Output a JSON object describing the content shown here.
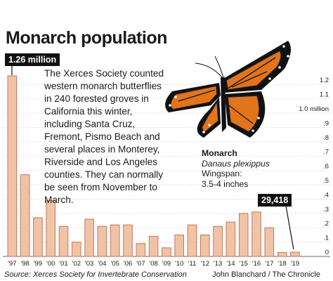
{
  "title": "Monarch population",
  "description": "The Xerces Society counted western monarch butterflies in 240 forested groves in California this winter, including Santa Cruz, Fremont, Pismo Beach and several places in Monterey, Riverside and Los Angeles counties. They can normally be seen from November to March.",
  "species": {
    "common_name": "Monarch",
    "scientific_name": "Danaus plexippus",
    "wingspan_label": "Wingspan:",
    "wingspan_value": "3.5-4 inches"
  },
  "callouts": {
    "peak": "1.26 million",
    "latest": "29,418"
  },
  "source": "Source: Xerces Society for Invertebrate Conservation",
  "credit": "John Blanchard / The Chronicle",
  "colors": {
    "bar_fill": "#f0c3a6",
    "bar_stroke": "#c9745a",
    "callout_bg": "#111111",
    "grid": "#bbbbbb",
    "text": "#1a1a1a"
  },
  "chart_data": {
    "type": "bar",
    "categories": [
      "'97",
      "'98",
      "'99",
      "'00",
      "'01",
      "'02",
      "'03",
      "'04",
      "'05",
      "'06",
      "'07",
      "'08",
      "'09",
      "'10",
      "'11",
      "'12",
      "'13",
      "'14",
      "'15",
      "'16",
      "'17",
      "'18",
      "'19"
    ],
    "x_tick_labels": [
      "'97",
      "'98",
      "'99",
      "'00",
      "'01",
      "'02",
      "'03",
      "'04",
      "'05",
      "'06",
      "'07",
      "'08",
      "'09",
      "'10",
      "'11",
      "'12",
      "'13",
      "'14",
      "'15",
      "'16",
      "'17",
      "'18",
      "'19"
    ],
    "values": [
      1.26,
      0.57,
      0.27,
      0.39,
      0.21,
      0.1,
      0.26,
      0.21,
      0.22,
      0.22,
      0.09,
      0.14,
      0.06,
      0.15,
      0.22,
      0.15,
      0.21,
      0.24,
      0.3,
      0.31,
      0.2,
      0.028,
      0.029418
    ],
    "ylim": [
      0,
      1.26
    ],
    "y_ticks": [
      0,
      0.1,
      0.2,
      0.3,
      0.4,
      0.5,
      0.6,
      0.7,
      0.8,
      0.9,
      1.0,
      1.1,
      1.2
    ],
    "y_tick_labels": [
      "0",
      ".1",
      ".2",
      ".3",
      ".4",
      ".5",
      ".6",
      ".7",
      ".8",
      ".9",
      "1.0 million",
      "1.1",
      "1.2"
    ],
    "grid": true,
    "axis_side": "right"
  }
}
